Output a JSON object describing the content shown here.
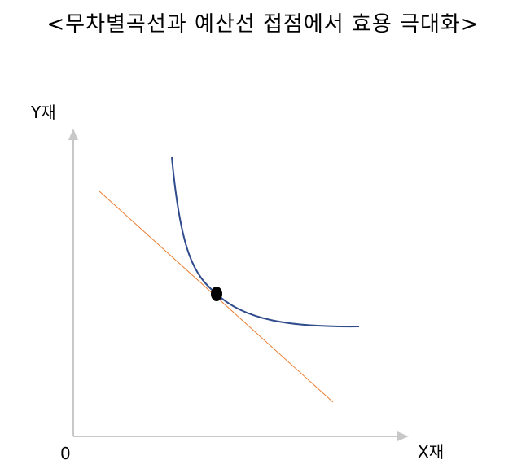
{
  "title": "<무차별곡선과 예산선 접점에서 효용 극대화>",
  "axes": {
    "y_label": "Y재",
    "x_label": "X재",
    "origin_label": "0",
    "axis_color": "#c8c8c8"
  },
  "curves": {
    "indifference_curve_color": "#2f4b8c",
    "budget_line_color": "#ed7d31",
    "tangent_point_color": "#000000"
  }
}
